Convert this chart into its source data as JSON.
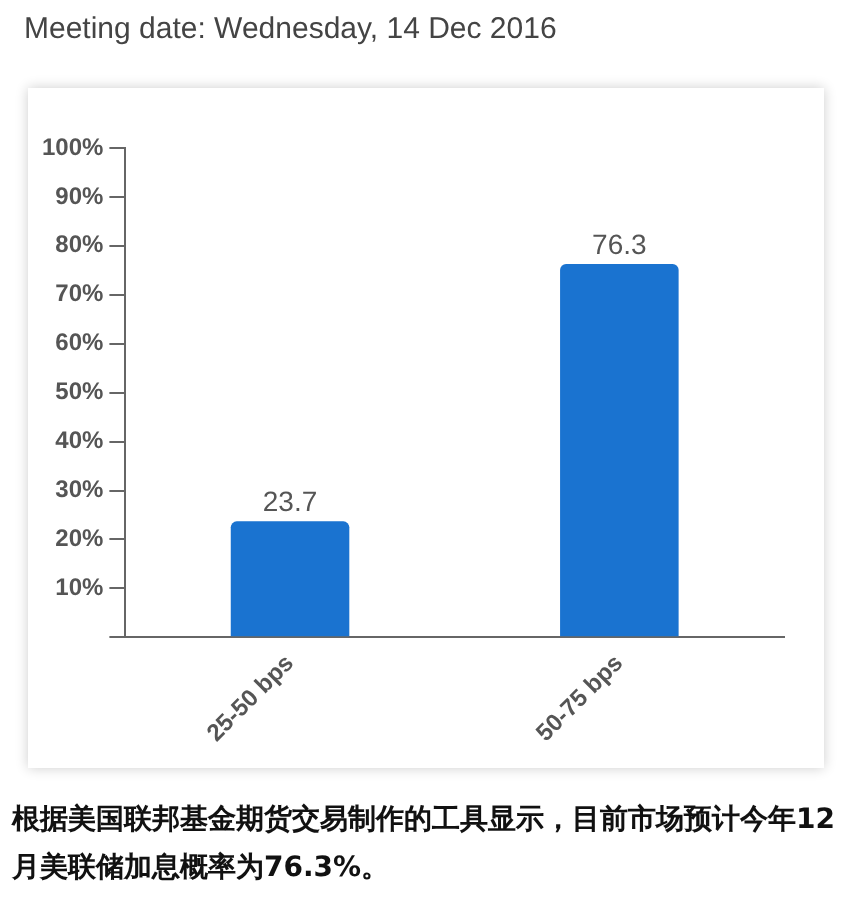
{
  "chart_data": {
    "type": "bar",
    "title": "Meeting date: Wednesday, 14 Dec 2016",
    "categories": [
      "25-50 bps",
      "50-75 bps"
    ],
    "values": [
      23.7,
      76.3
    ],
    "color": "#1a73d0",
    "ylim": [
      0,
      100
    ],
    "yticks": [
      {
        "value": 0,
        "label": null
      },
      {
        "value": 10,
        "label": "10%"
      },
      {
        "value": 20,
        "label": "20%"
      },
      {
        "value": 30,
        "label": "30%"
      },
      {
        "value": 40,
        "label": "40%"
      },
      {
        "value": 50,
        "label": "50%"
      },
      {
        "value": 60,
        "label": "60%"
      },
      {
        "value": 70,
        "label": "70%"
      },
      {
        "value": 80,
        "label": "80%"
      },
      {
        "value": 90,
        "label": "90%"
      },
      {
        "value": 100,
        "label": "100%"
      }
    ],
    "grid": false,
    "legend": false,
    "data_labels": true,
    "annotations": [
      "根据美国联邦基金期货交易制作的工具显示，目前市场预计今年12月美联储加息概率为76.3%。"
    ]
  }
}
